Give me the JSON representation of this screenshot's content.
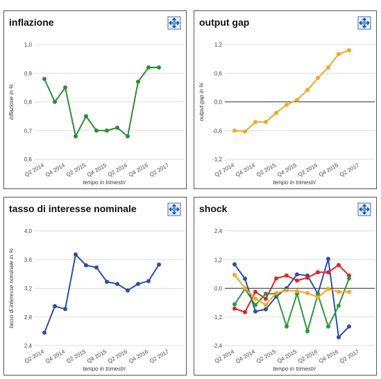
{
  "chart_data": [
    {
      "type": "line",
      "title": "inflazione",
      "y_label": "inflazione in %",
      "x_label": "tempo in trimestri",
      "categories": [
        "Q2 2014",
        null,
        "Q4 2014",
        null,
        "Q2 2015",
        null,
        "Q4 2015",
        null,
        "Q2 2016",
        null,
        "Q4 2016",
        null,
        "Q2 2017"
      ],
      "series": [
        {
          "color": "#2e8b3a",
          "values": [
            0.88,
            0.8,
            0.85,
            0.68,
            0.75,
            0.7,
            0.7,
            0.71,
            0.68,
            0.87,
            0.92,
            0.92,
            null
          ]
        }
      ],
      "ylim": [
        0.6,
        1.0
      ],
      "yticks": [
        {
          "value": 0.6,
          "label": "0,6"
        },
        {
          "value": 0.7,
          "label": "0,7"
        },
        {
          "value": 0.8,
          "label": "0,8"
        },
        {
          "value": 0.9,
          "label": "0,9"
        },
        {
          "value": 1.0,
          "label": "1,0"
        }
      ],
      "grid": true,
      "zero_line": false
    },
    {
      "type": "line",
      "title": "output gap",
      "y_label": "output gap in %",
      "x_label": "tempo in trimestri",
      "categories": [
        "Q2 2014",
        null,
        "Q4 2014",
        null,
        "Q2 2015",
        null,
        "Q4 2015",
        null,
        "Q2 2016",
        null,
        "Q4 2016",
        null,
        "Q2 2017"
      ],
      "series": [
        {
          "color": "#f5a623",
          "values": [
            -0.6,
            -0.62,
            -0.42,
            -0.42,
            -0.23,
            -0.06,
            0.04,
            0.25,
            0.5,
            0.72,
            1.0,
            1.08,
            null
          ]
        }
      ],
      "ylim": [
        -1.2,
        1.2
      ],
      "yticks": [
        {
          "value": -1.2,
          "label": "-1,2"
        },
        {
          "value": -0.6,
          "label": "-0,6"
        },
        {
          "value": 0,
          "label": "0,0"
        },
        {
          "value": 0.6,
          "label": "0,6"
        },
        {
          "value": 1.2,
          "label": "1,2"
        }
      ],
      "grid": true,
      "zero_line": true
    },
    {
      "type": "line",
      "title": "tasso di interesse nominale",
      "y_label": "tasso di interesse nominale in %",
      "x_label": "tempo in trimestri",
      "categories": [
        "Q2 2014",
        null,
        "Q4 2014",
        null,
        "Q2 2015",
        null,
        "Q4 2015",
        null,
        "Q2 2016",
        null,
        "Q4 2016",
        null,
        "Q2 2017"
      ],
      "series": [
        {
          "color": "#2a4ea8",
          "values": [
            2.58,
            2.95,
            2.91,
            3.67,
            3.52,
            3.49,
            3.29,
            3.26,
            3.17,
            3.26,
            3.3,
            3.53,
            null
          ]
        }
      ],
      "ylim": [
        2.4,
        4.0
      ],
      "yticks": [
        {
          "value": 2.4,
          "label": "2,4"
        },
        {
          "value": 2.8,
          "label": "2,8"
        },
        {
          "value": 3.2,
          "label": "3,2"
        },
        {
          "value": 3.6,
          "label": "3,6"
        },
        {
          "value": 4.0,
          "label": "4,0"
        }
      ],
      "grid": true,
      "zero_line": false
    },
    {
      "type": "line",
      "title": "shock",
      "x_label": "tempo in trimestri",
      "categories": [
        "Q2 2014",
        null,
        "Q4 2014",
        null,
        "Q2 2015",
        null,
        "Q4 2015",
        null,
        "Q2 2016",
        null,
        "Q4 2016",
        null,
        "Q2 2017"
      ],
      "series": [
        {
          "color": "#2a4ea8",
          "values": [
            1.0,
            0.4,
            -0.97,
            -0.88,
            -0.35,
            0,
            0.58,
            0.53,
            -0.23,
            1.23,
            -2.05,
            -1.6,
            null
          ]
        },
        {
          "color": "#e02424",
          "values": [
            -0.85,
            -1.0,
            -0.15,
            -0.44,
            0.41,
            0.53,
            0.32,
            0.44,
            0.67,
            0.67,
            0.97,
            0.53,
            null
          ]
        },
        {
          "color": "#2a9a3a",
          "values": [
            -0.67,
            -0.03,
            -0.7,
            -0.23,
            -0.23,
            -1.6,
            -0.23,
            -1.8,
            -0.26,
            -1.6,
            -0.73,
            0.41,
            null
          ]
        },
        {
          "color": "#f5a623",
          "values": [
            0.56,
            0,
            -0.44,
            -0.7,
            -0.2,
            -0.09,
            -0.12,
            -0.2,
            -0.38,
            -0.03,
            -0.15,
            -0.15,
            null
          ]
        }
      ],
      "ylim": [
        -2.4,
        2.4
      ],
      "yticks": [
        {
          "value": -2.4,
          "label": "-2,4"
        },
        {
          "value": -1.2,
          "label": "-1,2"
        },
        {
          "value": 0,
          "label": "0,0"
        },
        {
          "value": 1.2,
          "label": "1,2"
        },
        {
          "value": 2.4,
          "label": "2,4"
        }
      ],
      "grid": true,
      "zero_line": true
    }
  ]
}
